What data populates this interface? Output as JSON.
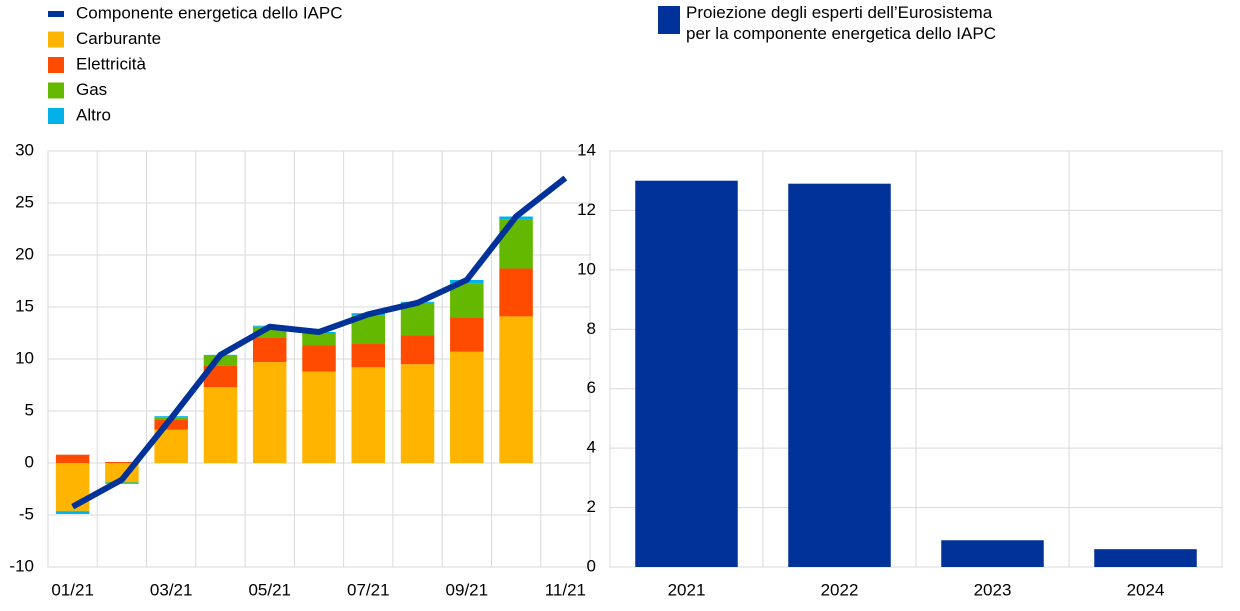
{
  "chart_data": [
    {
      "type": "bar",
      "stacked": true,
      "grid": true,
      "legend": "top-left",
      "categories": [
        "01/21",
        null,
        "03/21",
        null,
        "05/21",
        null,
        "07/21",
        null,
        "09/21",
        null,
        "11/21"
      ],
      "ylim": [
        -10,
        30
      ],
      "yticks": [
        -10,
        -5,
        0,
        5,
        10,
        15,
        20,
        25,
        30
      ],
      "series": [
        {
          "name": "Componente energetica dello IAPC",
          "type": "line",
          "color": "#003299",
          "values": [
            -4.2,
            -1.6,
            4.3,
            10.4,
            13.1,
            12.6,
            14.3,
            15.4,
            17.6,
            23.7,
            27.4
          ]
        },
        {
          "name": "Carburante",
          "color": "#ffb400",
          "values": [
            -4.6,
            -1.8,
            3.2,
            7.3,
            9.7,
            8.8,
            9.2,
            9.5,
            10.7,
            14.1,
            null
          ]
        },
        {
          "name": "Elettricità",
          "color": "#ff4b00",
          "values": [
            0.8,
            0.1,
            1.0,
            2.1,
            2.4,
            2.5,
            2.3,
            2.8,
            3.3,
            4.6,
            null
          ]
        },
        {
          "name": "Gas",
          "color": "#65b800",
          "values": [
            -0.1,
            -0.1,
            0.2,
            0.9,
            1.0,
            1.2,
            2.7,
            3.1,
            3.3,
            4.7,
            null
          ]
        },
        {
          "name": "Altro",
          "color": "#00b1ea",
          "values": [
            -0.2,
            -0.1,
            0.1,
            0.1,
            0.1,
            0.1,
            0.2,
            0.1,
            0.3,
            0.3,
            null
          ]
        }
      ]
    },
    {
      "type": "bar",
      "grid": true,
      "legend": "top-left",
      "categories": [
        "2021",
        "2022",
        "2023",
        "2024"
      ],
      "ylim": [
        0,
        14
      ],
      "yticks": [
        0,
        2,
        4,
        6,
        8,
        10,
        12,
        14
      ],
      "series": [
        {
          "name": "Proiezione degli esperti dell’Eurosistema per la componente energetica dello IAPC",
          "color": "#003299",
          "values": [
            13.0,
            12.9,
            0.9,
            0.6
          ]
        }
      ]
    }
  ]
}
